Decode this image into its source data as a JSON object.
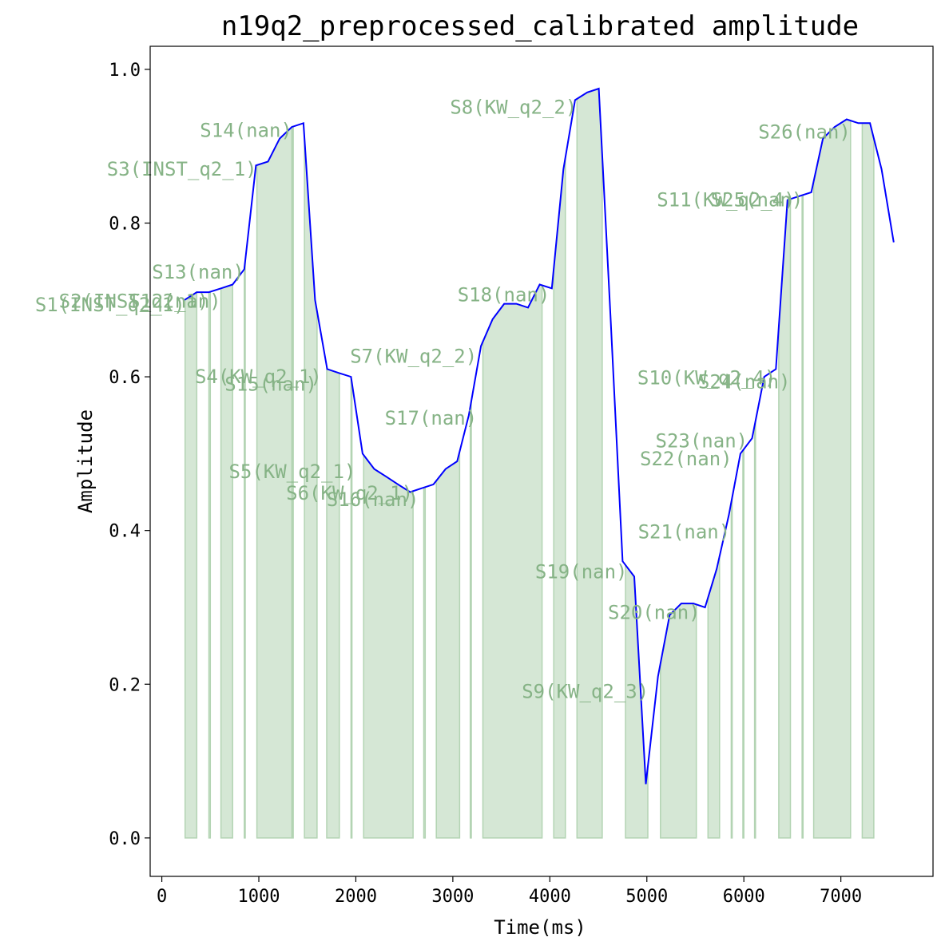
{
  "chart_data": {
    "type": "line",
    "title": "n19q2_preprocessed_calibrated amplitude",
    "xlabel": "Time(ms)",
    "ylabel": "Amplitude",
    "xlim": [
      -120,
      7950
    ],
    "ylim": [
      -0.05,
      1.03
    ],
    "xticks": [
      0,
      1000,
      2000,
      3000,
      4000,
      5000,
      6000,
      7000
    ],
    "yticks": [
      0.0,
      0.2,
      0.4,
      0.6,
      0.8,
      1.0
    ],
    "xtick_labels": [
      "0",
      "1000",
      "2000",
      "3000",
      "4000",
      "5000",
      "6000",
      "7000"
    ],
    "ytick_labels": [
      "0.0",
      "0.2",
      "0.4",
      "0.6",
      "0.8",
      "1.0"
    ],
    "grid": false,
    "line_color": "#0000ff",
    "band_color": "#b3d4b3",
    "series": [
      {
        "x": [
          235,
          360,
          485,
          610,
          730,
          850,
          970,
          1095,
          1215,
          1340,
          1460,
          1580,
          1705,
          1825,
          1950,
          2070,
          2190,
          2315,
          2435,
          2560,
          2680,
          2800,
          2925,
          3045,
          3165,
          3290,
          3410,
          3530,
          3655,
          3775,
          3895,
          4020,
          4140,
          4260,
          4385,
          4505,
          4625,
          4750,
          4870,
          4990,
          5115,
          5235,
          5355,
          5480,
          5600,
          5720,
          5845,
          5965,
          6085,
          6210,
          6330,
          6450,
          6570,
          6695,
          6815,
          6935,
          7060,
          7180,
          7300,
          7420,
          7545
        ],
        "y": [
          0.7,
          0.71,
          0.71,
          0.715,
          0.72,
          0.74,
          0.875,
          0.88,
          0.91,
          0.925,
          0.93,
          0.7,
          0.61,
          0.605,
          0.6,
          0.5,
          0.48,
          0.47,
          0.46,
          0.45,
          0.455,
          0.46,
          0.48,
          0.49,
          0.55,
          0.64,
          0.675,
          0.695,
          0.695,
          0.69,
          0.72,
          0.715,
          0.87,
          0.96,
          0.97,
          0.975,
          0.68,
          0.36,
          0.34,
          0.07,
          0.21,
          0.29,
          0.305,
          0.305,
          0.3,
          0.35,
          0.42,
          0.5,
          0.52,
          0.6,
          0.61,
          0.83,
          0.835,
          0.84,
          0.91,
          0.925,
          0.935,
          0.93,
          0.93,
          0.87,
          0.775
        ]
      }
    ],
    "segments": [
      {
        "label": "S1(INST_q2_1)",
        "start": 240,
        "end": 360
      },
      {
        "label": "S2(INST_q2_1)",
        "start": 485,
        "end": 500
      },
      {
        "label": "S3(INST_q2_1)",
        "start": 980,
        "end": 1340
      },
      {
        "label": "S4(KW_q2_1)",
        "start": 1470,
        "end": 1600
      },
      {
        "label": "S5(KW_q2_1)",
        "start": 1700,
        "end": 1830
      },
      {
        "label": "S6(KW_q2_1)",
        "start": 2080,
        "end": 2590
      },
      {
        "label": "S7(KW_q2_2)",
        "start": 2830,
        "end": 3070
      },
      {
        "label": "S8(KW_q2_2)",
        "start": 4280,
        "end": 4540
      },
      {
        "label": "S9(KW_q2_3)",
        "start": 4780,
        "end": 5010
      },
      {
        "label": "S10(KW_q2_4)",
        "start": 6360,
        "end": 6480
      },
      {
        "label": "S11(KW_q2_4)",
        "start": 6720,
        "end": 7100
      },
      {
        "label": "S12(nan)",
        "start": 610,
        "end": 730
      },
      {
        "label": "S13(nan)",
        "start": 850,
        "end": 860
      },
      {
        "label": "S14(nan)",
        "start": 1345,
        "end": 1355
      },
      {
        "label": "S15(nan)",
        "start": 1950,
        "end": 1960
      },
      {
        "label": "S16(nan)",
        "start": 2700,
        "end": 2715
      },
      {
        "label": "S17(nan)",
        "start": 3180,
        "end": 3190
      },
      {
        "label": "S18(nan)",
        "start": 3310,
        "end": 3920
      },
      {
        "label": "S19(nan)",
        "start": 4040,
        "end": 4160
      },
      {
        "label": "S20(nan)",
        "start": 5140,
        "end": 5510
      },
      {
        "label": "S21(nan)",
        "start": 5630,
        "end": 5750
      },
      {
        "label": "S22(nan)",
        "start": 5870,
        "end": 5880
      },
      {
        "label": "S23(nan)",
        "start": 5990,
        "end": 6000
      },
      {
        "label": "S24(nan)",
        "start": 6110,
        "end": 6120
      },
      {
        "label": "S25(nan)",
        "start": 6600,
        "end": 6610
      },
      {
        "label": "S26(nan)",
        "start": 7220,
        "end": 7340
      }
    ],
    "annotations": [
      {
        "text": "S1(INST_q2_1)",
        "x": 240,
        "y": 0.685
      },
      {
        "text": "S2(INST_q2_1)",
        "x": 485,
        "y": 0.69
      },
      {
        "text": "S12(nan)",
        "x": 610,
        "y": 0.69
      },
      {
        "text": "S3(INST_q2_1)",
        "x": 980,
        "y": 0.862
      },
      {
        "text": "S14(nan)",
        "x": 1345,
        "y": 0.912
      },
      {
        "text": "S13(nan)",
        "x": 850,
        "y": 0.728
      },
      {
        "text": "S4(KW_q2_1)",
        "x": 1650,
        "y": 0.592
      },
      {
        "text": "S15(nan)",
        "x": 1600,
        "y": 0.582
      },
      {
        "text": "S5(KW_q2_1)",
        "x": 2000,
        "y": 0.468
      },
      {
        "text": "S6(KW_q2_1)",
        "x": 2590,
        "y": 0.44
      },
      {
        "text": "S16(nan)",
        "x": 2650,
        "y": 0.432
      },
      {
        "text": "S7(KW_q2_2)",
        "x": 3250,
        "y": 0.618
      },
      {
        "text": "S17(nan)",
        "x": 3250,
        "y": 0.538
      },
      {
        "text": "S18(nan)",
        "x": 4000,
        "y": 0.698
      },
      {
        "text": "S8(KW_q2_2)",
        "x": 4280,
        "y": 0.942
      },
      {
        "text": "S19(nan)",
        "x": 4800,
        "y": 0.338
      },
      {
        "text": "S9(KW_q2_3)",
        "x": 5020,
        "y": 0.182
      },
      {
        "text": "S20(nan)",
        "x": 5550,
        "y": 0.285
      },
      {
        "text": "S21(nan)",
        "x": 5860,
        "y": 0.39
      },
      {
        "text": "S22(nan)",
        "x": 5880,
        "y": 0.485
      },
      {
        "text": "S23(nan)",
        "x": 6040,
        "y": 0.508
      },
      {
        "text": "S10(KW_q2_4)",
        "x": 6330,
        "y": 0.59
      },
      {
        "text": "S24(nan)",
        "x": 6480,
        "y": 0.585
      },
      {
        "text": "S11(KW_q2_4)",
        "x": 6530,
        "y": 0.822
      },
      {
        "text": "S25(nan)",
        "x": 6610,
        "y": 0.822
      },
      {
        "text": "S26(nan)",
        "x": 7100,
        "y": 0.91
      }
    ]
  }
}
